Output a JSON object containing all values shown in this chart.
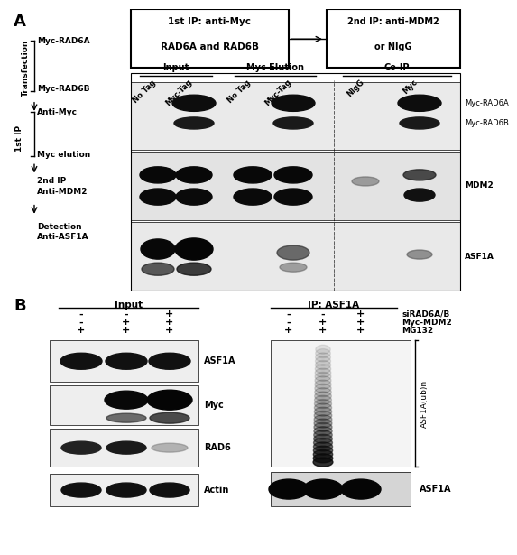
{
  "bg_color": "#ffffff",
  "panel_A": {
    "label": "A",
    "box1_text1": "1st IP: anti-Myc",
    "box1_text2": "RAD6A and RAD6B",
    "box2_text1": "2nd IP: anti-MDM2",
    "box2_text2": "or NIgG",
    "col_groups": [
      "Input",
      "Myc Elution",
      "Co-IP"
    ],
    "col_labels": [
      "No Tag",
      "Myc-Tag",
      "No Tag",
      "Myc-Tag",
      "NIgG",
      "Myc"
    ],
    "row_labels_right": [
      "Myc-RAD6A",
      "Myc-RAD6B",
      "MDM2",
      "ASF1A"
    ],
    "transfection_label": "Transfection",
    "first_ip_label": "1st IP"
  },
  "panel_B": {
    "label": "B",
    "left_title": "Input",
    "right_title": "IP: ASF1A",
    "signs_left": [
      [
        "-",
        "-",
        "+"
      ],
      [
        "-",
        "+",
        "+"
      ],
      [
        "+",
        "+",
        "+"
      ]
    ],
    "signs_right": [
      [
        "-",
        "-",
        "+"
      ],
      [
        "-",
        "+",
        "+"
      ],
      [
        "+",
        "+",
        "+"
      ]
    ],
    "sign_labels_right": [
      "siRAD6A/B",
      "Myc-MDM2",
      "MG132"
    ],
    "blot_labels_left": [
      "ASF1A",
      "Myc",
      "RAD6",
      "Actin"
    ],
    "right_bracket_label": "ASF1A(ub)n",
    "right_bottom_label": "ASF1A"
  }
}
